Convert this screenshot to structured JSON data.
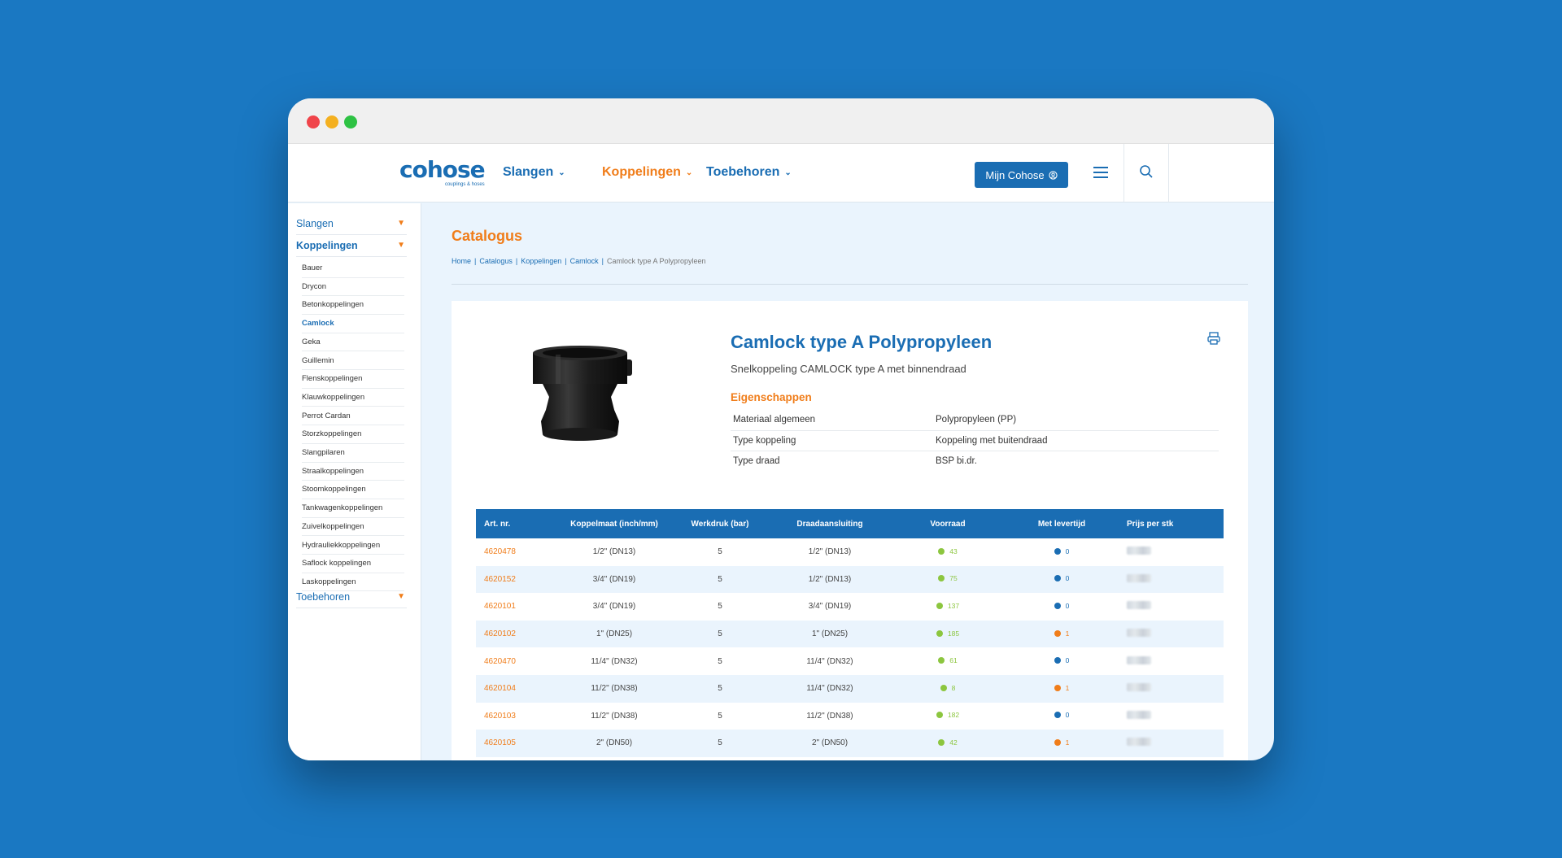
{
  "header": {
    "logo": "cohose",
    "logo_sub": "couplings & hoses",
    "nav": [
      {
        "label": "Slangen",
        "active": false
      },
      {
        "label": "Koppelingen",
        "active": true
      },
      {
        "label": "Toebehoren",
        "active": false
      }
    ],
    "account_button": "Mijn Cohose"
  },
  "sidebar": {
    "top": [
      {
        "label": "Slangen"
      },
      {
        "label": "Koppelingen"
      },
      {
        "label": "Toebehoren"
      }
    ],
    "sub": [
      "Bauer",
      "Drycon",
      "Betonkoppelingen",
      "Camlock",
      "Geka",
      "Guillemin",
      "Flenskoppelingen",
      "Klauwkoppelingen",
      "Perrot Cardan",
      "Storzkoppelingen",
      "Slangpilaren",
      "Straalkoppelingen",
      "Stoomkoppelingen",
      "Tankwagenkoppelingen",
      "Zuivelkoppelingen",
      "Hydrauliekkoppelingen",
      "Saflock koppelingen",
      "Laskoppelingen"
    ],
    "active_sub": "Camlock"
  },
  "page": {
    "title": "Catalogus",
    "breadcrumb": [
      "Home",
      "Catalogus",
      "Koppelingen",
      "Camlock",
      "Camlock type A Polypropyleen"
    ]
  },
  "product": {
    "title": "Camlock type A Polypropyleen",
    "subtitle": "Snelkoppeling CAMLOCK type A met binnendraad",
    "properties_heading": "Eigenschappen",
    "properties": [
      {
        "key": "Materiaal algemeen",
        "value": "Polypropyleen (PP)"
      },
      {
        "key": "Type koppeling",
        "value": "Koppeling met buitendraad"
      },
      {
        "key": "Type draad",
        "value": "BSP bi.dr."
      }
    ]
  },
  "table": {
    "headers": [
      "Art. nr.",
      "Koppelmaat (inch/mm)",
      "Werkdruk (bar)",
      "Draadaansluiting",
      "Voorraad",
      "Met levertijd",
      "Prijs per stk"
    ],
    "rows": [
      {
        "art": "4620478",
        "size": "1/2\" (DN13)",
        "pressure": "5",
        "thread": "1/2\" (DN13)",
        "stock": "43",
        "lead": "0",
        "lead_color": "b"
      },
      {
        "art": "4620152",
        "size": "3/4\" (DN19)",
        "pressure": "5",
        "thread": "1/2\" (DN13)",
        "stock": "75",
        "lead": "0",
        "lead_color": "b"
      },
      {
        "art": "4620101",
        "size": "3/4\" (DN19)",
        "pressure": "5",
        "thread": "3/4\" (DN19)",
        "stock": "137",
        "lead": "0",
        "lead_color": "b"
      },
      {
        "art": "4620102",
        "size": "1\" (DN25)",
        "pressure": "5",
        "thread": "1\" (DN25)",
        "stock": "185",
        "lead": "1",
        "lead_color": "o"
      },
      {
        "art": "4620470",
        "size": "11/4\" (DN32)",
        "pressure": "5",
        "thread": "11/4\" (DN32)",
        "stock": "61",
        "lead": "0",
        "lead_color": "b"
      },
      {
        "art": "4620104",
        "size": "11/2\" (DN38)",
        "pressure": "5",
        "thread": "11/4\" (DN32)",
        "stock": "8",
        "lead": "1",
        "lead_color": "o"
      },
      {
        "art": "4620103",
        "size": "11/2\" (DN38)",
        "pressure": "5",
        "thread": "11/2\" (DN38)",
        "stock": "182",
        "lead": "0",
        "lead_color": "b"
      },
      {
        "art": "4620105",
        "size": "2\" (DN50)",
        "pressure": "5",
        "thread": "2\" (DN50)",
        "stock": "42",
        "lead": "1",
        "lead_color": "o"
      }
    ]
  },
  "colors": {
    "brand_blue": "#1a6db3",
    "accent_orange": "#f07d1a",
    "stock_green": "#8cc63f",
    "background": "#1a78c2"
  },
  "icons": [
    "user-circle-icon",
    "hamburger-icon",
    "search-icon",
    "print-icon",
    "chevron-down-icon"
  ]
}
